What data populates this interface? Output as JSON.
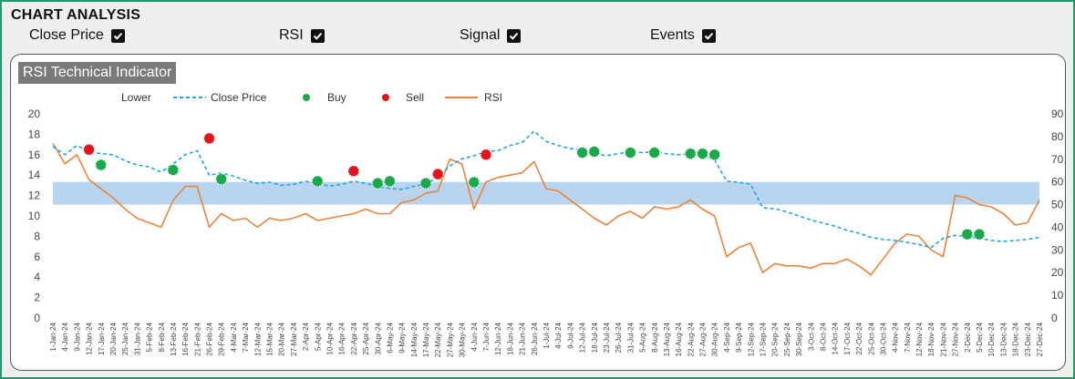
{
  "header": {
    "title": "CHART ANALYSIS"
  },
  "toggles": [
    {
      "label": "Close Price",
      "checked": true
    },
    {
      "label": "RSI",
      "checked": true
    },
    {
      "label": "Signal",
      "checked": true
    },
    {
      "label": "Events",
      "checked": true
    }
  ],
  "panel": {
    "title": "RSI Technical Indicator"
  },
  "colors": {
    "close": "#1aa7e0",
    "rsi": "#e8843c",
    "buy": "#19a84a",
    "sell": "#e0141c",
    "band": "#b8d4ee",
    "frame": "#1f9a6a"
  },
  "chart_data": {
    "type": "line",
    "legend": [
      "Lower",
      "Close Price",
      "Buy",
      "Sell",
      "RSI"
    ],
    "legend_position": "top",
    "y_left": {
      "min": 0,
      "max": 20,
      "step": 2,
      "ticks": [
        "0",
        "2",
        "4",
        "6",
        "8",
        "10",
        "12",
        "14",
        "16",
        "18",
        "20"
      ]
    },
    "y_right": {
      "min": 0,
      "max": 90,
      "step": 10,
      "ticks": [
        "0",
        "10",
        "20",
        "30",
        "40",
        "50",
        "60",
        "70",
        "80",
        "90"
      ]
    },
    "rsi_band": [
      50,
      60
    ],
    "x_labels": [
      "1-Jan-24",
      "4-Jan-24",
      "9-Jan-24",
      "12-Jan-24",
      "17-Jan-24",
      "20-Jan-24",
      "25-Jan-24",
      "31-Jan-24",
      "5-Feb-24",
      "8-Feb-24",
      "13-Feb-24",
      "16-Feb-24",
      "21-Feb-24",
      "26-Feb-24",
      "29-Feb-24",
      "4-Mar-24",
      "7-Mar-24",
      "12-Mar-24",
      "15-Mar-24",
      "20-Mar-24",
      "27-Mar-24",
      "2-Apr-24",
      "5-Apr-24",
      "10-Apr-24",
      "16-Apr-24",
      "22-Apr-24",
      "25-Apr-24",
      "30-Apr-24",
      "6-May-24",
      "9-May-24",
      "14-May-24",
      "17-May-24",
      "22-May-24",
      "27-May-24",
      "30-May-24",
      "4-Jun-24",
      "7-Jun-24",
      "12-Jun-24",
      "18-Jun-24",
      "21-Jun-24",
      "26-Jun-24",
      "1-Jul-24",
      "4-Jul-24",
      "9-Jul-24",
      "12-Jul-24",
      "18-Jul-24",
      "23-Jul-24",
      "26-Jul-24",
      "31-Jul-24",
      "5-Aug-24",
      "8-Aug-24",
      "13-Aug-24",
      "16-Aug-24",
      "22-Aug-24",
      "27-Aug-24",
      "30-Aug-24",
      "4-Sep-24",
      "9-Sep-24",
      "12-Sep-24",
      "17-Sep-24",
      "20-Sep-24",
      "25-Sep-24",
      "30-Sep-24",
      "3-Oct-24",
      "8-Oct-24",
      "14-Oct-24",
      "17-Oct-24",
      "22-Oct-24",
      "25-Oct-24",
      "30-Oct-24",
      "4-Nov-24",
      "7-Nov-24",
      "12-Nov-24",
      "18-Nov-24",
      "21-Nov-24",
      "27-Nov-24",
      "2-Dec-24",
      "5-Dec-24",
      "10-Dec-24",
      "13-Dec-24",
      "18-Dec-24",
      "23-Dec-24",
      "27-Dec-24"
    ],
    "close_price": [
      [
        0,
        16.8
      ],
      [
        1,
        16.0
      ],
      [
        2,
        16.9
      ],
      [
        3,
        16.3
      ],
      [
        4,
        16.1
      ],
      [
        5,
        16.0
      ],
      [
        6,
        15.4
      ],
      [
        7,
        15.0
      ],
      [
        8,
        14.8
      ],
      [
        9,
        14.3
      ],
      [
        10,
        15.1
      ],
      [
        11,
        16.0
      ],
      [
        12,
        16.4
      ],
      [
        13,
        14.0
      ],
      [
        14,
        14.2
      ],
      [
        15,
        13.9
      ],
      [
        16,
        13.5
      ],
      [
        17,
        13.2
      ],
      [
        18,
        13.3
      ],
      [
        19,
        13.0
      ],
      [
        20,
        13.1
      ],
      [
        21,
        13.4
      ],
      [
        22,
        13.2
      ],
      [
        23,
        12.9
      ],
      [
        24,
        13.1
      ],
      [
        25,
        13.4
      ],
      [
        26,
        13.2
      ],
      [
        27,
        12.9
      ],
      [
        28,
        12.7
      ],
      [
        29,
        12.6
      ],
      [
        30,
        12.9
      ],
      [
        31,
        13.1
      ],
      [
        32,
        13.8
      ],
      [
        33,
        14.9
      ],
      [
        34,
        15.6
      ],
      [
        35,
        15.9
      ],
      [
        36,
        16.3
      ],
      [
        37,
        16.4
      ],
      [
        38,
        16.9
      ],
      [
        39,
        17.2
      ],
      [
        40,
        18.3
      ],
      [
        41,
        17.3
      ],
      [
        42,
        16.9
      ],
      [
        43,
        16.6
      ],
      [
        44,
        16.4
      ],
      [
        45,
        16.1
      ],
      [
        46,
        15.9
      ],
      [
        47,
        16.1
      ],
      [
        48,
        16.3
      ],
      [
        49,
        16.2
      ],
      [
        50,
        16.3
      ],
      [
        51,
        16.1
      ],
      [
        52,
        16.0
      ],
      [
        53,
        16.1
      ],
      [
        54,
        16.0
      ],
      [
        55,
        15.5
      ],
      [
        56,
        13.4
      ],
      [
        57,
        13.3
      ],
      [
        58,
        13.1
      ],
      [
        59,
        10.8
      ],
      [
        60,
        10.7
      ],
      [
        61,
        10.4
      ],
      [
        62,
        10.0
      ],
      [
        63,
        9.6
      ],
      [
        64,
        9.3
      ],
      [
        65,
        9.0
      ],
      [
        66,
        8.6
      ],
      [
        67,
        8.3
      ],
      [
        68,
        7.9
      ],
      [
        69,
        7.7
      ],
      [
        70,
        7.6
      ],
      [
        71,
        7.4
      ],
      [
        72,
        7.2
      ],
      [
        73,
        6.9
      ],
      [
        74,
        7.8
      ],
      [
        75,
        8.1
      ],
      [
        76,
        8.0
      ],
      [
        77,
        7.8
      ],
      [
        78,
        7.6
      ],
      [
        79,
        7.5
      ],
      [
        80,
        7.6
      ],
      [
        81,
        7.7
      ],
      [
        82,
        7.9
      ]
    ],
    "rsi": [
      [
        0,
        77
      ],
      [
        1,
        68
      ],
      [
        2,
        72
      ],
      [
        3,
        61
      ],
      [
        4,
        57
      ],
      [
        5,
        53
      ],
      [
        6,
        48
      ],
      [
        7,
        44
      ],
      [
        8,
        42
      ],
      [
        9,
        40
      ],
      [
        10,
        52
      ],
      [
        11,
        58
      ],
      [
        12,
        58
      ],
      [
        13,
        40
      ],
      [
        14,
        46
      ],
      [
        15,
        43
      ],
      [
        16,
        44
      ],
      [
        17,
        40
      ],
      [
        18,
        44
      ],
      [
        19,
        43
      ],
      [
        20,
        44
      ],
      [
        21,
        46
      ],
      [
        22,
        43
      ],
      [
        23,
        44
      ],
      [
        24,
        45
      ],
      [
        25,
        46
      ],
      [
        26,
        48
      ],
      [
        27,
        46
      ],
      [
        28,
        46
      ],
      [
        29,
        51
      ],
      [
        30,
        52
      ],
      [
        31,
        55
      ],
      [
        32,
        56
      ],
      [
        33,
        70
      ],
      [
        34,
        68
      ],
      [
        35,
        48
      ],
      [
        36,
        60
      ],
      [
        37,
        62
      ],
      [
        38,
        63
      ],
      [
        39,
        64
      ],
      [
        40,
        69
      ],
      [
        41,
        57
      ],
      [
        42,
        56
      ],
      [
        43,
        52
      ],
      [
        44,
        48
      ],
      [
        45,
        44
      ],
      [
        46,
        41
      ],
      [
        47,
        45
      ],
      [
        48,
        47
      ],
      [
        49,
        44
      ],
      [
        50,
        49
      ],
      [
        51,
        48
      ],
      [
        52,
        49
      ],
      [
        53,
        52
      ],
      [
        54,
        48
      ],
      [
        55,
        45
      ],
      [
        56,
        27
      ],
      [
        57,
        31
      ],
      [
        58,
        33
      ],
      [
        59,
        20
      ],
      [
        60,
        24
      ],
      [
        61,
        23
      ],
      [
        62,
        23
      ],
      [
        63,
        22
      ],
      [
        64,
        24
      ],
      [
        65,
        24
      ],
      [
        66,
        26
      ],
      [
        67,
        23
      ],
      [
        68,
        19
      ],
      [
        69,
        26
      ],
      [
        70,
        33
      ],
      [
        71,
        37
      ],
      [
        72,
        36
      ],
      [
        73,
        30
      ],
      [
        74,
        27
      ],
      [
        75,
        54
      ],
      [
        76,
        53
      ],
      [
        77,
        50
      ],
      [
        78,
        49
      ],
      [
        79,
        46
      ],
      [
        80,
        41
      ],
      [
        81,
        42
      ],
      [
        82,
        52
      ]
    ],
    "buy_points": [
      [
        4,
        15.0
      ],
      [
        10,
        14.5
      ],
      [
        14,
        13.6
      ],
      [
        22,
        13.4
      ],
      [
        27,
        13.2
      ],
      [
        28,
        13.4
      ],
      [
        31,
        13.2
      ],
      [
        35,
        13.3
      ],
      [
        44,
        16.2
      ],
      [
        45,
        16.3
      ],
      [
        48,
        16.2
      ],
      [
        50,
        16.2
      ],
      [
        53,
        16.1
      ],
      [
        54,
        16.1
      ],
      [
        55,
        16.0
      ],
      [
        76,
        8.2
      ],
      [
        77,
        8.2
      ]
    ],
    "sell_points": [
      [
        3,
        16.5
      ],
      [
        13,
        17.6
      ],
      [
        25,
        14.4
      ],
      [
        32,
        14.1
      ],
      [
        36,
        16.0
      ]
    ]
  }
}
